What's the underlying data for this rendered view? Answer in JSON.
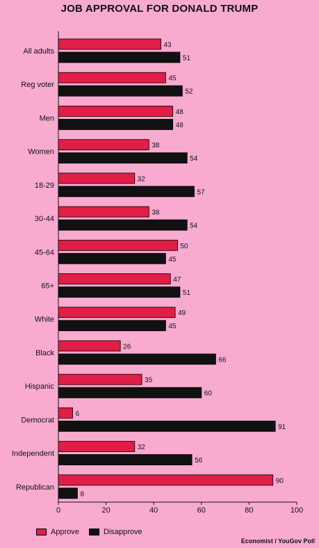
{
  "chart_data": {
    "type": "bar",
    "orientation": "horizontal",
    "title": "JOB APPROVAL FOR DONALD TRUMP",
    "categories": [
      "All adults",
      "Reg voter",
      "Men",
      "Women",
      "18-29",
      "30-44",
      "45-64",
      "65+",
      "White",
      "Black",
      "Hispanic",
      "Democrat",
      "Independent",
      "Republican"
    ],
    "series": [
      {
        "name": "Approve",
        "color": "#e01e46",
        "values": [
          43,
          45,
          48,
          38,
          32,
          38,
          50,
          47,
          49,
          26,
          35,
          6,
          32,
          90
        ]
      },
      {
        "name": "Disapprove",
        "color": "#111111",
        "values": [
          51,
          52,
          48,
          54,
          57,
          54,
          45,
          51,
          45,
          66,
          60,
          91,
          56,
          8
        ]
      }
    ],
    "xlim": [
      0,
      100
    ],
    "xticks": [
      0,
      20,
      40,
      60,
      80,
      100
    ],
    "xlabel": "",
    "ylabel": "",
    "grid": false,
    "legend_position": "bottom-left",
    "source": "Economist / YouGov Poll"
  }
}
